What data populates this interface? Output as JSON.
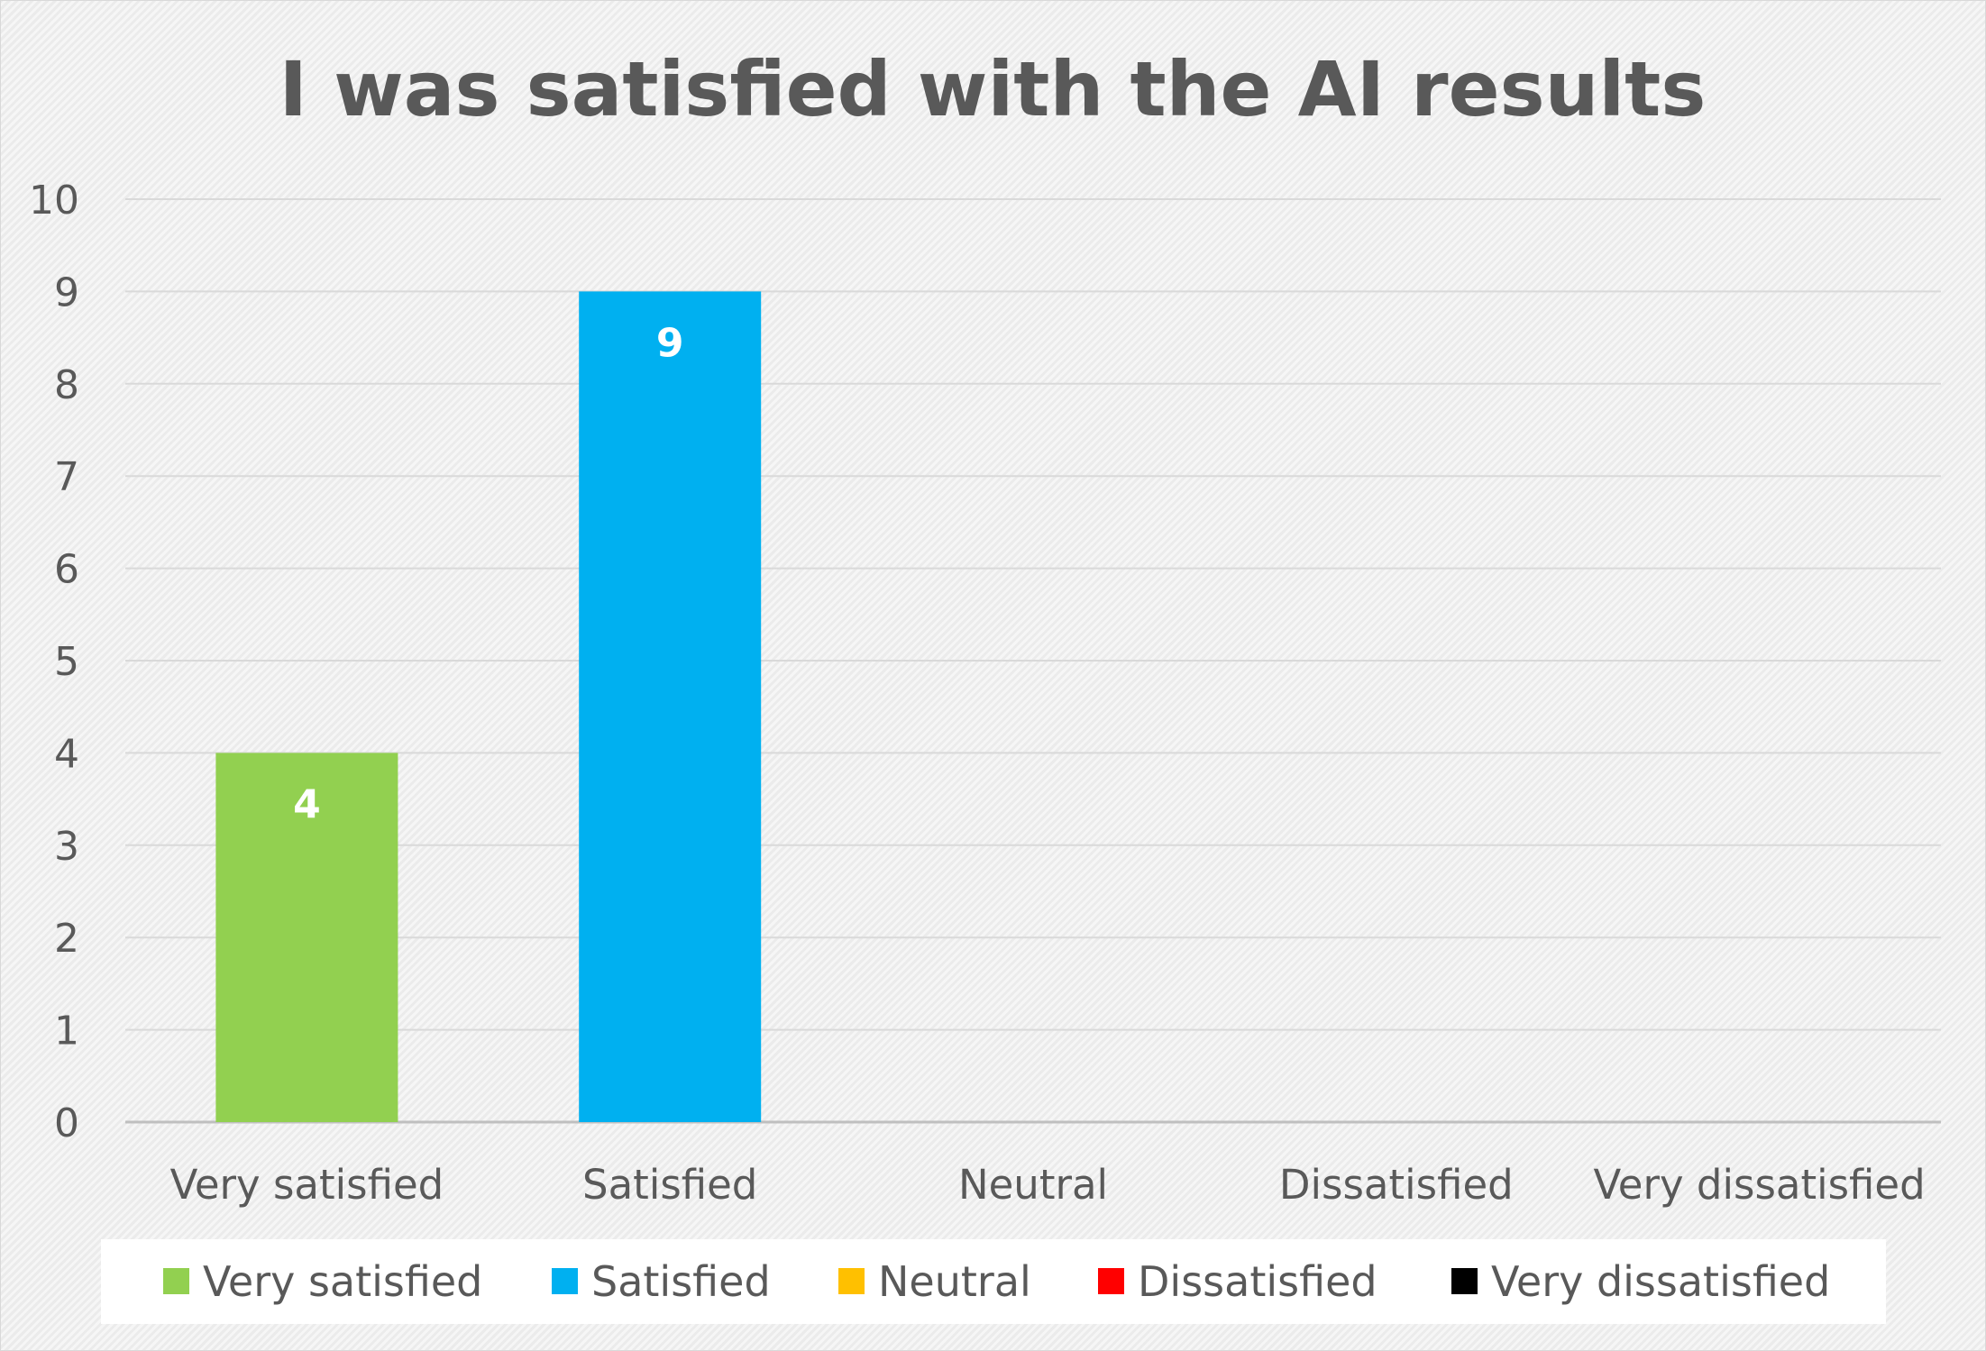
{
  "chart_data": {
    "type": "bar",
    "title": "I was satisfied with the AI results",
    "xlabel": "",
    "ylabel": "",
    "categories": [
      "Very satisfied",
      "Satisfied",
      "Neutral",
      "Dissatisfied",
      "Very dissatisfied"
    ],
    "values": [
      4,
      9,
      0,
      0,
      0
    ],
    "colors": [
      "#92d050",
      "#00b0f0",
      "#ffc000",
      "#ff0000",
      "#000000"
    ],
    "ylim": [
      0,
      10
    ],
    "yticks": [
      0,
      1,
      2,
      3,
      4,
      5,
      6,
      7,
      8,
      9,
      10
    ],
    "data_labels": [
      "4",
      "9",
      "",
      "",
      ""
    ],
    "grid": true,
    "legend": {
      "position": "bottom",
      "entries": [
        "Very satisfied",
        "Satisfied",
        "Neutral",
        "Dissatisfied",
        "Very dissatisfied"
      ]
    }
  }
}
